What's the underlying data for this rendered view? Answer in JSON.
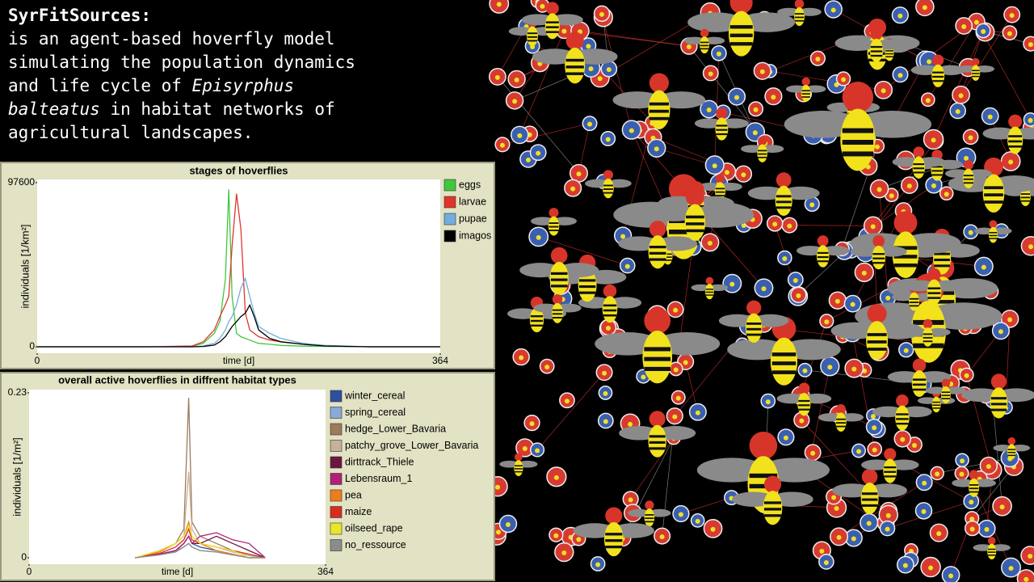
{
  "header": {
    "title": "SyrFitSources:",
    "text_before": "is an agent-based hoverfly model simulating the population dynamics and life cycle of",
    "species": "Episyrphus balteatus",
    "text_after": "in habitat networks of agricultural landscapes."
  },
  "chart_data": [
    {
      "type": "line",
      "title": "stages of hoverflies",
      "xlabel": "time [d]",
      "ylabel": "individuals [1/km²]",
      "xlim": [
        0,
        364
      ],
      "xticks": [
        0,
        364
      ],
      "ylim": [
        0,
        97600
      ],
      "yticks": [
        0,
        97600
      ],
      "x": [
        0,
        100,
        140,
        150,
        160,
        165,
        170,
        173,
        176,
        180,
        184,
        188,
        192,
        196,
        200,
        210,
        220,
        240,
        260,
        300,
        364
      ],
      "series": [
        {
          "name": "eggs",
          "color": "#3ec83e",
          "values": [
            0,
            0,
            300,
            2000,
            8000,
            15000,
            40000,
            93600,
            30000,
            8000,
            6000,
            5000,
            4000,
            3000,
            2000,
            1500,
            800,
            400,
            200,
            0,
            0
          ]
        },
        {
          "name": "larvae",
          "color": "#e0352b",
          "values": [
            0,
            0,
            500,
            3000,
            10000,
            18000,
            25000,
            30000,
            60000,
            91000,
            70000,
            20000,
            10000,
            8000,
            6000,
            4000,
            3000,
            1500,
            500,
            0,
            0
          ]
        },
        {
          "name": "pupae",
          "color": "#72aedc",
          "values": [
            0,
            0,
            0,
            500,
            2000,
            5000,
            10000,
            15000,
            18000,
            25000,
            35000,
            40600,
            30000,
            20000,
            12000,
            8000,
            5000,
            2000,
            800,
            0,
            0
          ]
        },
        {
          "name": "imagos",
          "color": "#000000",
          "values": [
            0,
            0,
            0,
            200,
            1000,
            3000,
            6000,
            9000,
            12000,
            15000,
            18000,
            20000,
            24800,
            18000,
            10000,
            5000,
            3000,
            1500,
            500,
            0,
            0
          ]
        }
      ]
    },
    {
      "type": "line",
      "title": "overall active hoverflies in diffrent habitat types",
      "xlabel": "time [d]",
      "ylabel": "individuals [1/m²]",
      "xlim": [
        0,
        364
      ],
      "xticks": [
        0,
        364
      ],
      "ylim": [
        0,
        0.23
      ],
      "yticks": [
        0,
        0.23
      ],
      "x": [
        130,
        160,
        180,
        190,
        196,
        200,
        210,
        230,
        250,
        270,
        290
      ],
      "series": [
        {
          "name": "winter_cereal",
          "color": "#2f4fa0",
          "values": [
            0,
            0.005,
            0.01,
            0.02,
            0.03,
            0.02,
            0.015,
            0.01,
            0.005,
            0,
            0
          ]
        },
        {
          "name": "spring_cereal",
          "color": "#8aa8d8",
          "values": [
            0,
            0.004,
            0.01,
            0.015,
            0.02,
            0.015,
            0.01,
            0.008,
            0.004,
            0,
            0
          ]
        },
        {
          "name": "hedge_Lower_Bavaria",
          "color": "#9c7a5a",
          "values": [
            0,
            0.01,
            0.02,
            0.04,
            0.223,
            0.05,
            0.03,
            0.02,
            0.01,
            0.005,
            0
          ]
        },
        {
          "name": "patchy_grove_Lower_Bavaria",
          "color": "#c8b09c",
          "values": [
            0,
            0.008,
            0.02,
            0.03,
            0.12,
            0.04,
            0.02,
            0.015,
            0.008,
            0.003,
            0
          ]
        },
        {
          "name": "dirttrack_Thiele",
          "color": "#6b1640",
          "values": [
            0,
            0.005,
            0.01,
            0.02,
            0.03,
            0.02,
            0.02,
            0.03,
            0.02,
            0.01,
            0
          ]
        },
        {
          "name": "Lebensraum_1",
          "color": "#b0207a",
          "values": [
            0,
            0.005,
            0.01,
            0.02,
            0.03,
            0.02,
            0.03,
            0.035,
            0.025,
            0.02,
            0
          ]
        },
        {
          "name": "pea",
          "color": "#ef7d1a",
          "values": [
            0,
            0.008,
            0.02,
            0.03,
            0.05,
            0.03,
            0.02,
            0.01,
            0.005,
            0,
            0
          ]
        },
        {
          "name": "maize",
          "color": "#d62d20",
          "values": [
            0,
            0.006,
            0.015,
            0.025,
            0.04,
            0.025,
            0.02,
            0.015,
            0.01,
            0.005,
            0
          ]
        },
        {
          "name": "oilseed_rape",
          "color": "#e8e82a",
          "values": [
            0,
            0.01,
            0.02,
            0.03,
            0.045,
            0.03,
            0.02,
            0.015,
            0.01,
            0,
            0
          ]
        },
        {
          "name": "no_ressource",
          "color": "#8c8c8c",
          "values": [
            0,
            0.004,
            0.008,
            0.015,
            0.02,
            0.015,
            0.01,
            0.008,
            0.004,
            0,
            0
          ]
        }
      ]
    }
  ]
}
